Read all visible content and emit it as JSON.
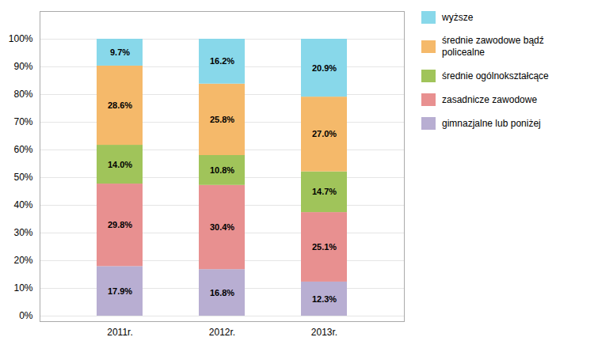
{
  "chart_data": {
    "type": "bar",
    "stacked": true,
    "categories": [
      "2011r.",
      "2012r.",
      "2013r."
    ],
    "series": [
      {
        "name": "gimnazjalne lub poniżej",
        "color": "#b8aed2",
        "values": [
          17.9,
          16.8,
          12.3
        ],
        "value_labels": [
          "17.9%",
          "16.8%",
          "12.3%"
        ]
      },
      {
        "name": "zasadnicze zawodowe",
        "color": "#e89090",
        "values": [
          29.8,
          30.4,
          25.1
        ],
        "value_labels": [
          "29.8%",
          "30.4%",
          "25.1%"
        ]
      },
      {
        "name": "średnie ogólnokształcące",
        "color": "#a0c45a",
        "values": [
          14.0,
          10.8,
          14.7
        ],
        "value_labels": [
          "14.0%",
          "10.8%",
          "14.7%"
        ]
      },
      {
        "name": "średnie zawodowe bądź\npolicealne",
        "color": "#f5b96a",
        "values": [
          28.6,
          25.8,
          27.0
        ],
        "value_labels": [
          "28.6%",
          "25.8%",
          "27.0%"
        ]
      },
      {
        "name": "wyższe",
        "color": "#88d8ea",
        "values": [
          9.7,
          16.2,
          20.9
        ],
        "value_labels": [
          "9.7%",
          "16.2%",
          "20.9%"
        ]
      }
    ],
    "ylim": [
      -2,
      110
    ],
    "yticks": [
      {
        "value": 0,
        "label": "0%"
      },
      {
        "value": 10,
        "label": "10%"
      },
      {
        "value": 20,
        "label": "20%"
      },
      {
        "value": 30,
        "label": "30%"
      },
      {
        "value": 40,
        "label": "40%"
      },
      {
        "value": 50,
        "label": "50%"
      },
      {
        "value": 60,
        "label": "60%"
      },
      {
        "value": 70,
        "label": "70%"
      },
      {
        "value": 80,
        "label": "80%"
      },
      {
        "value": 90,
        "label": "90%"
      },
      {
        "value": 100,
        "label": "100%"
      }
    ],
    "grid": true,
    "legend": "right",
    "data_labels": true
  }
}
